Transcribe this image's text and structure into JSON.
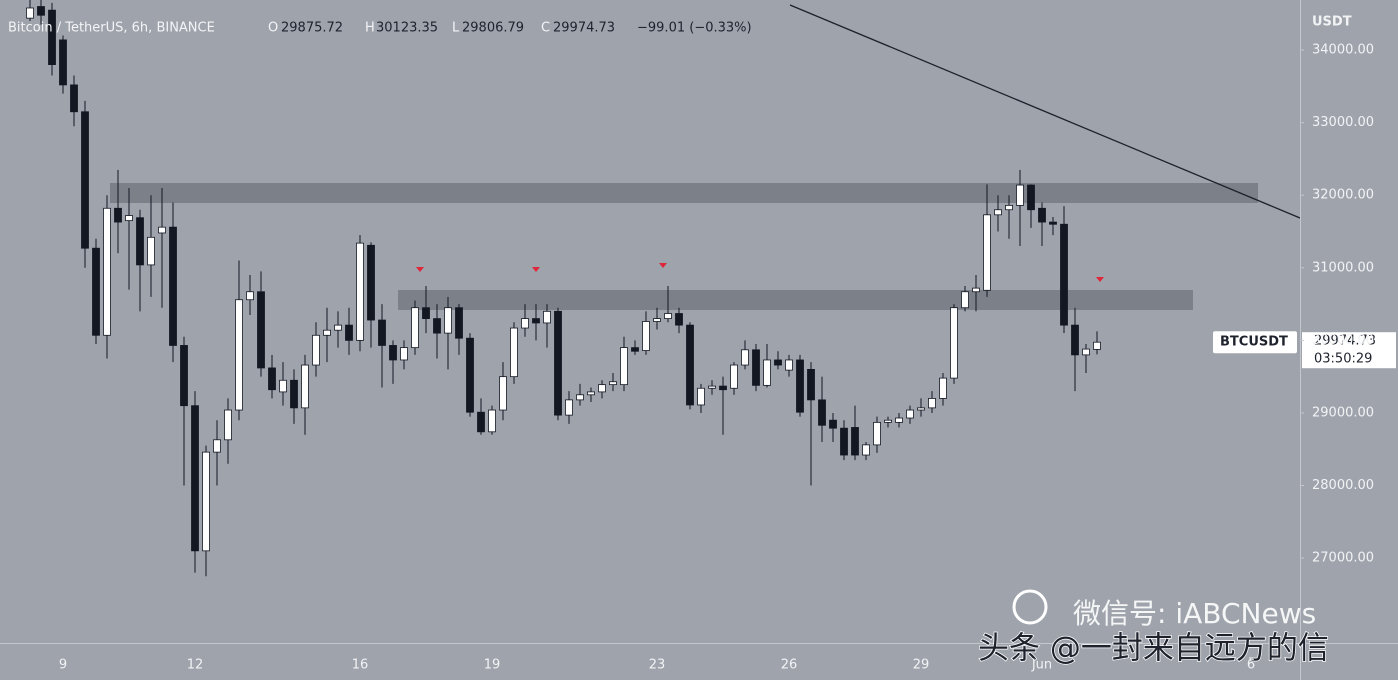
{
  "chart_data": {
    "type": "candlestick",
    "title": "Bitcoin / TetherUS, 6h, BINANCE",
    "header_labels": {
      "open": "O",
      "high": "H",
      "low": "L",
      "close": "C"
    },
    "change": "−99.01 (−0.33%)",
    "y_unit": "USDT",
    "symbol": "BTCUSDT",
    "countdown": "03:50:29",
    "up_color": "#ffffff",
    "down_color": "#131722",
    "ylim": [
      25830,
      34690
    ],
    "yticks": [
      {
        "value": 27000,
        "label": "27000.00"
      },
      {
        "value": 28000,
        "label": "28000.00"
      },
      {
        "value": 29000,
        "label": "29000.00"
      },
      {
        "value": 30000,
        "label": "30000.00"
      },
      {
        "value": 31000,
        "label": "31000.00"
      },
      {
        "value": 32000,
        "label": "32000.00"
      },
      {
        "value": 33000,
        "label": "33000.00"
      },
      {
        "value": 34000,
        "label": "34000.00"
      }
    ],
    "categories": [
      null,
      null,
      null,
      "9",
      null,
      null,
      null,
      null,
      null,
      null,
      null,
      null,
      null,
      null,
      null,
      "12",
      null,
      null,
      null,
      null,
      null,
      null,
      null,
      null,
      null,
      null,
      null,
      null,
      null,
      null,
      "16",
      null,
      null,
      null,
      null,
      null,
      null,
      null,
      null,
      null,
      null,
      null,
      "19",
      null,
      null,
      null,
      null,
      null,
      null,
      null,
      null,
      null,
      null,
      null,
      null,
      null,
      null,
      "23",
      null,
      null,
      null,
      null,
      null,
      null,
      null,
      null,
      null,
      null,
      null,
      "26",
      null,
      null,
      null,
      null,
      null,
      null,
      null,
      null,
      null,
      null,
      null,
      "29",
      null,
      null,
      null,
      null,
      null,
      null,
      null,
      null,
      null,
      null,
      "Jun",
      null,
      null,
      null,
      null,
      null,
      null,
      null,
      null,
      null,
      null,
      null,
      null,
      null,
      null,
      null,
      null,
      null,
      null,
      "6"
    ],
    "open": [
      34440,
      34600,
      34550,
      34140,
      33520,
      33150,
      31270,
      30070,
      31820,
      31650,
      31690,
      31040,
      31480,
      31560,
      29930,
      29100,
      27100,
      28460,
      28630,
      29040,
      30560,
      30670,
      29620,
      29290,
      29450,
      29070,
      29660,
      30070,
      30140,
      30210,
      30000,
      31310,
      30280,
      29930,
      29730,
      29900,
      30450,
      30300,
      30100,
      30450,
      30030,
      29010,
      28740,
      29040,
      29500,
      30170,
      30300,
      30240,
      30400,
      28970,
      29180,
      29250,
      29290,
      29390,
      29390,
      29900,
      29860,
      30260,
      30300,
      30370,
      30210,
      29110,
      29340,
      29370,
      29340,
      29660,
      29870,
      29380,
      29730,
      29590,
      29730,
      29600,
      29180,
      28900,
      28790,
      28800,
      28420,
      28560,
      28870,
      28870,
      28930,
      29040,
      29070,
      29200,
      29480,
      30450,
      30670,
      30690,
      31730,
      31800,
      31860,
      32140,
      31820,
      31630,
      31600,
      30210,
      29800,
      29875.72,
      null,
      null,
      null,
      null,
      null,
      null,
      null,
      null,
      null,
      null,
      null,
      null,
      null,
      null
    ],
    "high": [
      34700,
      34700,
      34650,
      34200,
      33650,
      33300,
      31400,
      32000,
      32350,
      32100,
      31800,
      32000,
      32100,
      31900,
      30050,
      29300,
      28550,
      28900,
      29200,
      31100,
      30900,
      30950,
      29800,
      29700,
      29600,
      29800,
      30250,
      30450,
      30400,
      30450,
      31450,
      31350,
      30500,
      30000,
      30000,
      30550,
      30750,
      30500,
      30600,
      30500,
      30100,
      29200,
      29100,
      29700,
      30250,
      30500,
      30500,
      30500,
      30450,
      29300,
      29400,
      29350,
      29450,
      29550,
      30050,
      30000,
      30400,
      30450,
      30750,
      30450,
      30250,
      29400,
      29450,
      29500,
      29700,
      30000,
      29950,
      29950,
      29850,
      29800,
      29800,
      29700,
      29500,
      29000,
      28900,
      29100,
      28600,
      28950,
      28950,
      29000,
      29100,
      29200,
      29300,
      29550,
      30500,
      30750,
      30900,
      32150,
      32000,
      32000,
      32350,
      32150,
      31900,
      31700,
      31850,
      30450,
      29950,
      30123.35,
      null,
      null,
      null,
      null,
      null,
      null,
      null,
      null,
      null,
      null,
      null,
      null,
      null,
      null
    ],
    "low": [
      34400,
      34350,
      33650,
      33400,
      32950,
      31000,
      29950,
      29750,
      31200,
      30700,
      30400,
      30600,
      30450,
      29700,
      28000,
      26800,
      26750,
      28000,
      28300,
      28900,
      30350,
      29500,
      29200,
      29100,
      28850,
      28700,
      29500,
      29700,
      29900,
      29800,
      29850,
      29900,
      29350,
      29400,
      29600,
      29800,
      30100,
      29750,
      29600,
      29800,
      28950,
      28700,
      28700,
      28900,
      29400,
      30050,
      30000,
      29900,
      28900,
      28850,
      29100,
      29150,
      29200,
      29300,
      29300,
      29800,
      29800,
      30150,
      30250,
      30100,
      29050,
      29000,
      29250,
      28700,
      29250,
      29600,
      29300,
      29350,
      29600,
      29500,
      28950,
      28000,
      28600,
      28600,
      28350,
      28350,
      28350,
      28450,
      28800,
      28800,
      28850,
      28950,
      29000,
      29100,
      29400,
      30400,
      30400,
      30600,
      31500,
      31400,
      31300,
      31550,
      31300,
      31450,
      30100,
      29300,
      29550,
      29806.79,
      null,
      null,
      null,
      null,
      null,
      null,
      null,
      null,
      null,
      null,
      null,
      null,
      null,
      null
    ],
    "close": [
      34580,
      34480,
      33800,
      33520,
      33150,
      31270,
      30070,
      31820,
      31630,
      31720,
      31040,
      31420,
      31560,
      29930,
      29100,
      27100,
      28460,
      28630,
      29040,
      30560,
      30670,
      29620,
      29320,
      29450,
      29070,
      29660,
      30070,
      30140,
      30210,
      30000,
      31340,
      30280,
      29930,
      29730,
      29900,
      30450,
      30300,
      30100,
      30450,
      30030,
      29010,
      28740,
      29040,
      29500,
      30170,
      30300,
      30240,
      30400,
      28970,
      29180,
      29250,
      29290,
      29390,
      29430,
      29900,
      29850,
      30260,
      30300,
      30370,
      30210,
      29110,
      29340,
      29370,
      29320,
      29660,
      29870,
      29380,
      29730,
      29660,
      29730,
      29010,
      29180,
      28830,
      28790,
      28420,
      28420,
      28560,
      28870,
      28900,
      28930,
      29040,
      29070,
      29200,
      29480,
      30450,
      30670,
      30720,
      31730,
      31800,
      31860,
      32140,
      31800,
      31630,
      31600,
      30210,
      29800,
      29880,
      29974.73,
      null,
      null,
      null,
      null,
      null,
      null,
      null,
      null,
      null,
      null,
      null,
      null,
      null,
      null
    ]
  },
  "watermark": {
    "line1": "微信号: iABCNews",
    "line2": "头条 @一封来自远方的信"
  }
}
